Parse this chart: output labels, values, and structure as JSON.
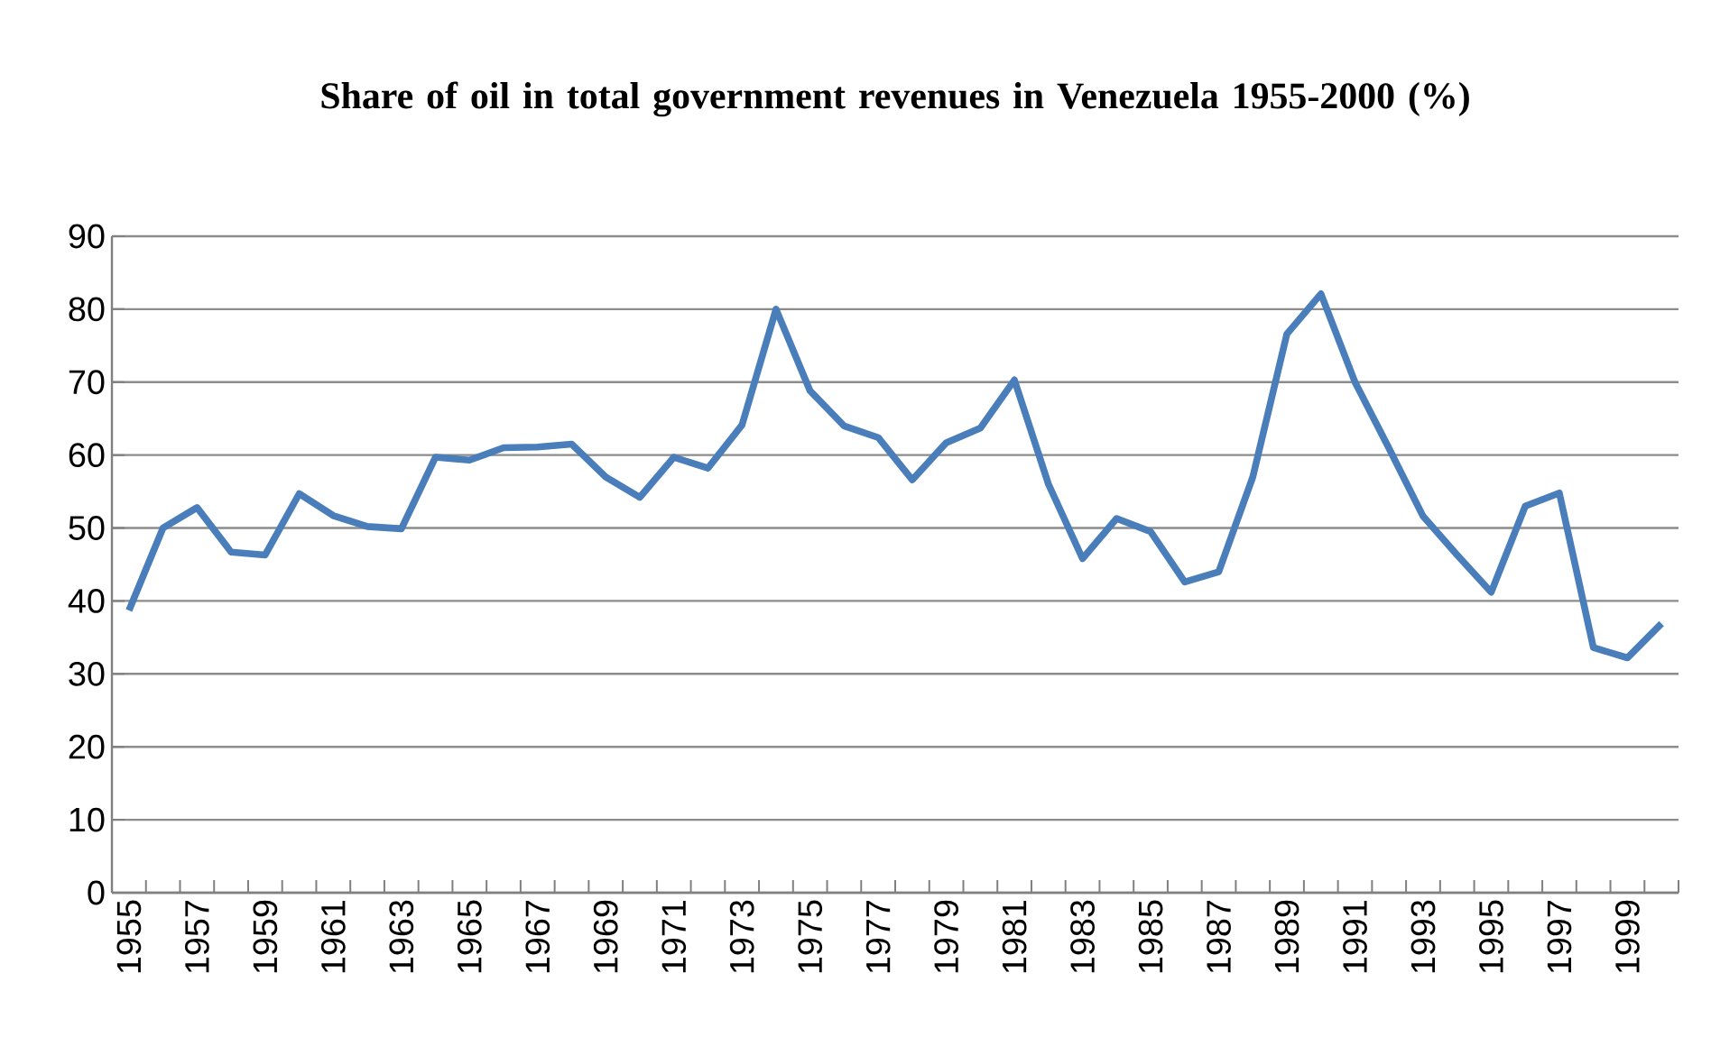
{
  "chart_data": {
    "type": "line",
    "title": "Share of oil in total government revenues  in Venezuela 1955-2000 (%)",
    "categories": [
      "1955",
      null,
      "1957",
      null,
      "1959",
      null,
      "1961",
      null,
      "1963",
      null,
      "1965",
      null,
      "1967",
      null,
      "1969",
      null,
      "1971",
      null,
      "1973",
      null,
      "1975",
      null,
      "1977",
      null,
      "1979",
      null,
      "1981",
      null,
      "1983",
      null,
      "1985",
      null,
      "1987",
      null,
      "1989",
      null,
      "1991",
      null,
      "1993",
      null,
      "1995",
      null,
      "1997",
      null,
      "1999",
      null
    ],
    "series": [
      {
        "color": "#4a7ebb",
        "values": [
          38.7,
          50,
          52.8,
          46.7,
          46.3,
          54.7,
          51.7,
          50.2,
          49.9,
          59.7,
          59.3,
          61,
          61.1,
          61.5,
          57,
          54.2,
          59.7,
          58.2,
          64.1,
          80,
          68.8,
          64,
          62.4,
          56.6,
          61.7,
          63.7,
          70.3,
          56,
          45.8,
          51.3,
          49.5,
          42.6,
          44,
          57,
          76.6,
          82.1,
          70,
          60.9,
          51.6,
          46.3,
          41.2,
          53,
          54.8,
          33.6,
          32.2,
          36.9
        ]
      }
    ],
    "ylim": [
      0,
      90
    ],
    "yticks": [
      0,
      10,
      20,
      30,
      40,
      50,
      60,
      70,
      80,
      90
    ],
    "grid": "y"
  }
}
